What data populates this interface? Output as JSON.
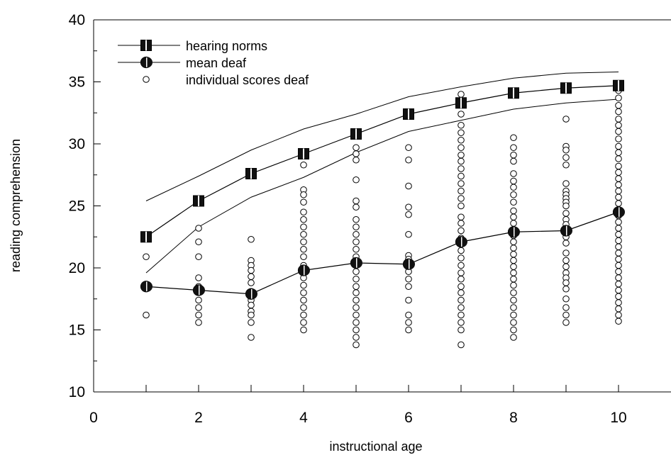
{
  "chart_data": {
    "type": "scatter",
    "title": "",
    "xlabel": "instructional age",
    "ylabel": "reading comprehension",
    "xlim": [
      0,
      11
    ],
    "ylim": [
      10,
      40
    ],
    "x_ticks": [
      0,
      2,
      4,
      6,
      8,
      10
    ],
    "y_ticks": [
      10,
      15,
      20,
      25,
      30,
      35,
      40
    ],
    "grid": false,
    "legend_position": "top-left",
    "legend": [
      "hearing norms",
      "mean deaf",
      "individual scores deaf"
    ],
    "series": [
      {
        "name": "hearing norms",
        "kind": "line-markers",
        "marker": "square",
        "x": [
          1,
          2,
          3,
          4,
          5,
          6,
          7,
          8,
          9,
          10
        ],
        "y": [
          22.5,
          25.4,
          27.6,
          29.2,
          30.8,
          32.4,
          33.3,
          34.1,
          34.5,
          34.7
        ],
        "upper": [
          25.4,
          27.4,
          29.5,
          31.2,
          32.4,
          33.8,
          34.6,
          35.3,
          35.7,
          35.8
        ],
        "lower": [
          19.6,
          23.3,
          25.7,
          27.3,
          29.3,
          31.0,
          31.9,
          32.8,
          33.3,
          33.6
        ]
      },
      {
        "name": "mean deaf",
        "kind": "line-markers",
        "marker": "half-filled-circle",
        "x": [
          1,
          2,
          3,
          4,
          5,
          6,
          7,
          8,
          9,
          10
        ],
        "y": [
          18.5,
          18.2,
          17.9,
          19.8,
          20.4,
          20.3,
          22.1,
          22.9,
          23.0,
          24.5
        ]
      },
      {
        "name": "individual scores deaf",
        "kind": "scatter",
        "marker": "open-circle",
        "points": [
          {
            "x": 1,
            "y": [
              20.9,
              16.2
            ]
          },
          {
            "x": 2,
            "y": [
              23.2,
              22.1,
              20.9,
              19.2,
              18.5,
              17.4,
              16.8,
              16.2,
              15.6
            ]
          },
          {
            "x": 3,
            "y": [
              22.3,
              20.6,
              20.2,
              19.8,
              19.3,
              18.8,
              18.1,
              17.4,
              17.0,
              16.5,
              16.2,
              15.6,
              14.4
            ]
          },
          {
            "x": 4,
            "y": [
              28.3,
              26.3,
              25.9,
              25.3,
              24.5,
              23.9,
              23.3,
              22.7,
              22.1,
              21.5,
              20.9,
              20.2,
              19.7,
              19.2,
              18.6,
              18.0,
              17.4,
              16.8,
              16.2,
              15.6,
              15.0
            ]
          },
          {
            "x": 5,
            "y": [
              29.7,
              29.2,
              28.7,
              27.1,
              25.4,
              24.9,
              23.9,
              23.3,
              22.7,
              22.1,
              21.5,
              20.9,
              20.3,
              19.7,
              19.1,
              18.5,
              18.0,
              17.4,
              16.8,
              16.2,
              15.6,
              15.0,
              14.4,
              13.8
            ]
          },
          {
            "x": 6,
            "y": [
              29.7,
              28.7,
              26.6,
              24.9,
              24.3,
              22.7,
              21.0,
              20.7,
              19.7,
              19.1,
              18.5,
              17.4,
              16.2,
              15.6,
              15.0
            ]
          },
          {
            "x": 7,
            "y": [
              34.0,
              33.5,
              32.4,
              31.5,
              30.9,
              30.3,
              29.7,
              29.1,
              28.6,
              28.0,
              27.4,
              26.8,
              26.2,
              25.6,
              25.0,
              24.1,
              23.6,
              23.0,
              22.4,
              21.9,
              21.4,
              20.8,
              20.2,
              19.6,
              19.1,
              18.5,
              18.0,
              17.4,
              16.8,
              16.2,
              15.6,
              15.0,
              13.8
            ]
          },
          {
            "x": 8,
            "y": [
              30.5,
              29.7,
              29.1,
              28.6,
              27.6,
              27.0,
              26.5,
              25.9,
              25.3,
              24.6,
              24.1,
              23.6,
              23.1,
              22.6,
              22.1,
              21.6,
              21.1,
              20.6,
              20.1,
              19.6,
              19.1,
              18.6,
              18.0,
              17.4,
              16.8,
              16.2,
              15.6,
              15.0,
              14.4
            ]
          },
          {
            "x": 9,
            "y": [
              32.0,
              29.8,
              29.5,
              28.9,
              28.3,
              26.8,
              26.2,
              25.9,
              25.6,
              25.3,
              25.0,
              24.4,
              23.9,
              23.5,
              23.1,
              22.5,
              22.0,
              21.2,
              20.6,
              20.1,
              19.6,
              19.2,
              18.8,
              18.3,
              17.5,
              16.8,
              16.2,
              15.6
            ]
          },
          {
            "x": 10,
            "y": [
              34.3,
              33.7,
              33.1,
              32.6,
              32.0,
              31.5,
              31.0,
              30.4,
              29.8,
              29.3,
              28.8,
              28.2,
              27.7,
              27.2,
              26.7,
              26.2,
              25.7,
              25.2,
              24.7,
              24.2,
              23.7,
              23.2,
              22.7,
              22.2,
              21.7,
              21.2,
              20.7,
              20.2,
              19.7,
              19.2,
              18.7,
              18.2,
              17.7,
              17.2,
              16.7,
              16.2,
              15.7
            ]
          }
        ]
      }
    ]
  }
}
